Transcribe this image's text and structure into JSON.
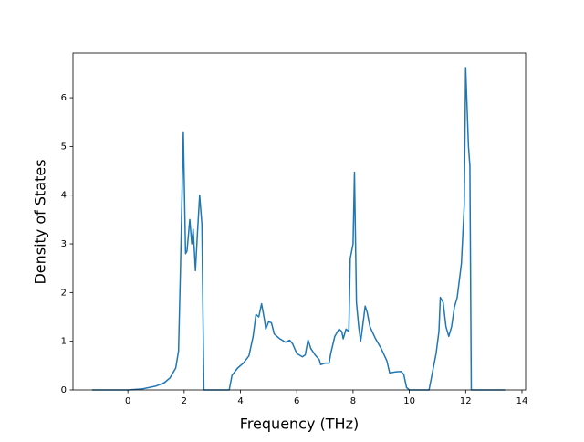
{
  "chart_data": {
    "type": "line",
    "xlabel": "Frequency (THz)",
    "ylabel": "Density of States",
    "color": "#1f77b4",
    "x": [
      -1.27,
      0,
      0.5,
      1,
      1.3,
      1.5,
      1.7,
      1.8,
      1.87,
      1.97,
      2.05,
      2.1,
      2.2,
      2.27,
      2.32,
      2.4,
      2.47,
      2.55,
      2.63,
      2.7,
      3.6,
      3.7,
      3.9,
      4.1,
      4.3,
      4.45,
      4.55,
      4.65,
      4.75,
      4.85,
      4.9,
      5.0,
      5.1,
      5.2,
      5.4,
      5.6,
      5.75,
      5.85,
      6.0,
      6.2,
      6.3,
      6.4,
      6.5,
      6.65,
      6.8,
      6.85,
      7.0,
      7.15,
      7.2,
      7.35,
      7.5,
      7.6,
      7.65,
      7.75,
      7.85,
      7.9,
      8.0,
      8.05,
      8.12,
      8.2,
      8.27,
      8.35,
      8.43,
      8.5,
      8.6,
      8.8,
      9.0,
      9.2,
      9.3,
      9.5,
      9.7,
      9.8,
      9.9,
      10.0,
      10.7,
      10.8,
      10.95,
      11.05,
      11.1,
      11.2,
      11.3,
      11.4,
      11.5,
      11.6,
      11.7,
      11.85,
      11.95,
      12.0,
      12.1,
      12.15,
      12.2,
      13.4
    ],
    "values": [
      0,
      0,
      0.02,
      0.08,
      0.15,
      0.25,
      0.45,
      0.8,
      2.5,
      5.3,
      2.8,
      2.85,
      3.5,
      3.0,
      3.3,
      2.45,
      3.2,
      4.0,
      3.4,
      0,
      0,
      0.3,
      0.45,
      0.55,
      0.7,
      1.1,
      1.55,
      1.5,
      1.77,
      1.45,
      1.25,
      1.4,
      1.38,
      1.15,
      1.05,
      0.98,
      1.02,
      0.95,
      0.75,
      0.68,
      0.72,
      1.03,
      0.85,
      0.72,
      0.62,
      0.52,
      0.55,
      0.55,
      0.73,
      1.1,
      1.25,
      1.2,
      1.05,
      1.25,
      1.2,
      2.7,
      3.0,
      4.47,
      1.8,
      1.3,
      1.0,
      1.35,
      1.72,
      1.6,
      1.3,
      1.05,
      0.85,
      0.6,
      0.35,
      0.37,
      0.38,
      0.32,
      0.05,
      0,
      0,
      0.3,
      0.75,
      1.2,
      1.9,
      1.8,
      1.3,
      1.1,
      1.3,
      1.7,
      1.9,
      2.6,
      3.8,
      6.62,
      5.0,
      4.6,
      0,
      0
    ],
    "xlim": [
      -1.95,
      14.13
    ],
    "xticks": [
      0,
      2,
      4,
      6,
      8,
      10,
      12,
      14
    ],
    "ylim": [
      0,
      6.92
    ],
    "yticks": [
      0,
      1,
      2,
      3,
      4,
      5,
      6
    ]
  }
}
